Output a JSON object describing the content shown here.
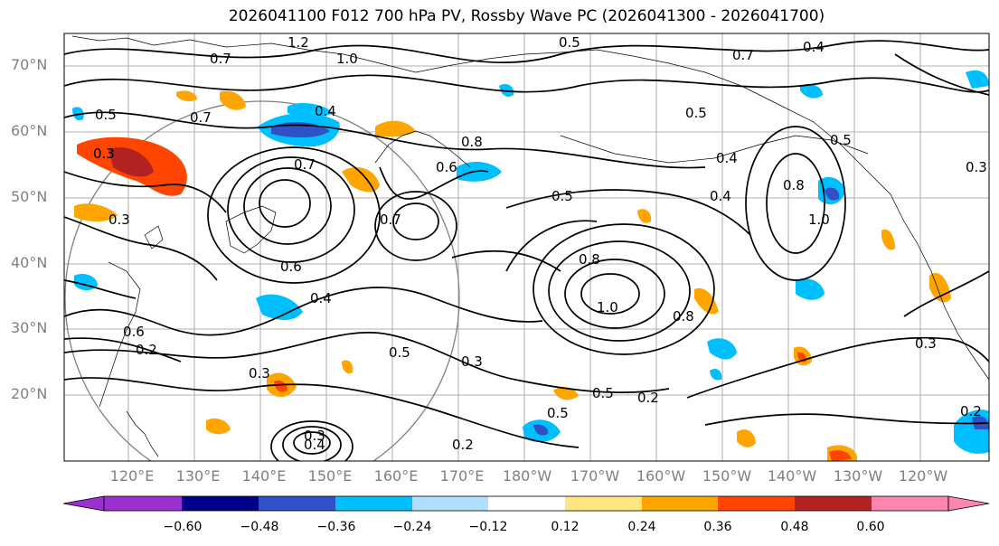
{
  "title": "2026041100 F012 700 hPa PV, Rossby Wave PC (2026041300 - 2026041700)",
  "lat_labels": [
    "70°N",
    "60°N",
    "50°N",
    "40°N",
    "30°N",
    "20°N"
  ],
  "lon_labels": [
    "120°E",
    "130°E",
    "140°E",
    "150°E",
    "160°E",
    "170°E",
    "180°W",
    "170°W",
    "160°W",
    "150°W",
    "140°W",
    "130°W",
    "120°W"
  ],
  "colorbar": {
    "colors": [
      "#9b30d0",
      "#00008b",
      "#3050c8",
      "#00bfff",
      "#b0e0ff",
      "#ffffff",
      "#ffe680",
      "#ffa500",
      "#ff4500",
      "#b22222",
      "#ff85b0"
    ],
    "tick_labels": [
      "−0.60",
      "−0.48",
      "−0.36",
      "−0.24",
      "−0.12",
      "0.12",
      "0.24",
      "0.36",
      "0.48",
      "0.60"
    ]
  },
  "contour_labels": [
    "1.2",
    "1.0",
    "0.7",
    "0.5",
    "0.4",
    "0.7",
    "0.5",
    "0.7",
    "0.4",
    "0.5",
    "0.3",
    "0.4",
    "0.3",
    "0.8",
    "0.6",
    "0.7",
    "0.5",
    "0.5",
    "0.4",
    "0.8",
    "1.0",
    "0.6",
    "0.8",
    "1.0",
    "0.7",
    "0.3",
    "0.8",
    "0.6",
    "0.4",
    "0.2",
    "0.5",
    "0.3",
    "0.3",
    "0.5",
    "0.5",
    "0.2",
    "0.2",
    "0.3",
    "0.4",
    "0.2",
    "0.3"
  ]
}
